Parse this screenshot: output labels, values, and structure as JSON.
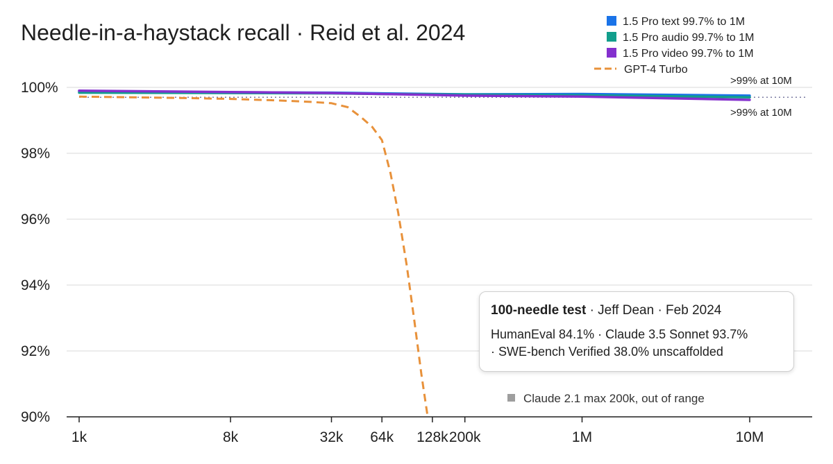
{
  "chart_data": {
    "type": "line",
    "title": "Needle-in-a-haystack recall · Reid et al. 2024",
    "xlabel": "",
    "ylabel": "",
    "x_scale": "log",
    "x_tick_labels": [
      "1k",
      "8k",
      "32k",
      "64k",
      "128k",
      "200k",
      "1M",
      "10M"
    ],
    "x_ticks": [
      1000,
      8000,
      32000,
      64000,
      128000,
      200000,
      1000000,
      10000000
    ],
    "y_ticks": [
      90,
      92,
      94,
      96,
      98,
      100
    ],
    "y_tick_labels": [
      "90%",
      "92%",
      "94%",
      "96%",
      "98%",
      "100%"
    ],
    "ylim": [
      90,
      100.3
    ],
    "grid": true,
    "legend_position": "top-right",
    "reference_line": {
      "y": 99.7,
      "style": "dotted",
      "color": "#7a7aa0"
    },
    "series": [
      {
        "name": "1.5 Pro text 99.7% to 1M",
        "color": "#1a73e8",
        "dash": "solid",
        "x": [
          1000,
          8000,
          32000,
          64000,
          128000,
          200000,
          1000000,
          10000000
        ],
        "y": [
          99.88,
          99.85,
          99.84,
          99.82,
          99.8,
          99.79,
          99.8,
          99.75
        ]
      },
      {
        "name": "1.5 Pro audio 99.7% to 1M",
        "color": "#129e8c",
        "dash": "solid",
        "x": [
          1000,
          8000,
          32000,
          64000,
          128000,
          200000,
          1000000,
          10000000
        ],
        "y": [
          99.84,
          99.83,
          99.82,
          99.8,
          99.79,
          99.78,
          99.76,
          99.7
        ]
      },
      {
        "name": "1.5 Pro video 99.7% to 1M",
        "color": "#8430ce",
        "dash": "solid",
        "x": [
          1000,
          8000,
          32000,
          64000,
          128000,
          200000,
          1000000,
          10000000
        ],
        "y": [
          99.9,
          99.86,
          99.83,
          99.8,
          99.77,
          99.75,
          99.72,
          99.62
        ]
      },
      {
        "name": "GPT-4 Turbo",
        "color": "#e8913a",
        "dash": "dashed",
        "x": [
          1000,
          4000,
          8000,
          16000,
          24000,
          32000,
          40000,
          48000,
          56000,
          64000,
          72000,
          80000,
          90000,
          100000,
          110000,
          120000
        ],
        "y": [
          99.72,
          99.68,
          99.65,
          99.6,
          99.56,
          99.52,
          99.4,
          99.1,
          98.8,
          98.4,
          97.4,
          96.2,
          94.6,
          92.9,
          91.3,
          90.0
        ]
      }
    ],
    "annotations": {
      "top_right": ">99% at 10M",
      "bottom_right": ">99% at 10M"
    },
    "note": {
      "label": "Claude 2.1 max 200k, out of range",
      "color": "#9e9e9e"
    }
  },
  "info_box": {
    "heading_bold": "100-needle test",
    "heading_rest": " · Jeff Dean · Feb 2024",
    "line1": "HumanEval 84.1% · Claude 3.5 Sonnet 93.7%",
    "line2": "· SWE-bench Verified 38.0% unscaffolded"
  }
}
